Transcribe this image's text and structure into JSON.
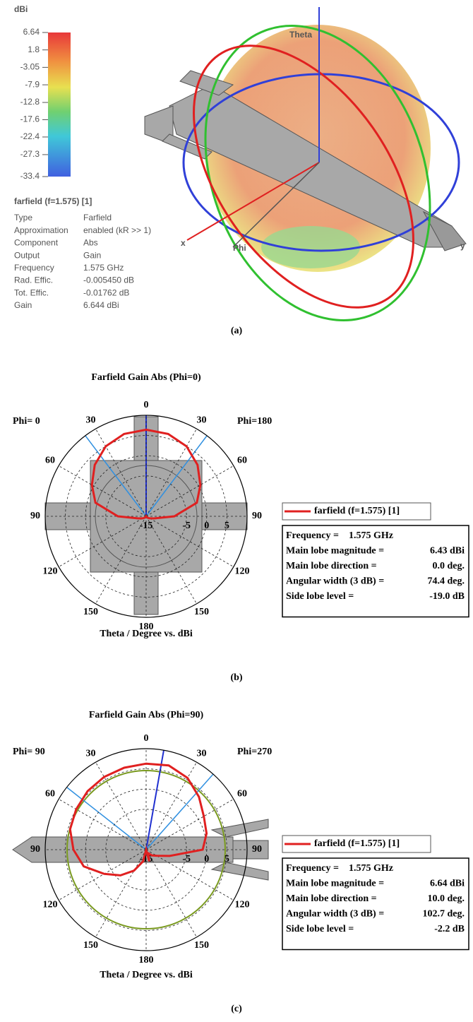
{
  "chart_data": [
    {
      "type": "colorbar",
      "unit": "dBi",
      "ylim": [
        -33.4,
        6.64
      ],
      "yticks": [
        6.64,
        1.8,
        -3.05,
        -7.9,
        -12.8,
        -17.6,
        -22.4,
        -27.3,
        -33.4
      ],
      "title": "farfield (f=1.575) [1]",
      "properties": [
        {
          "label": "Type",
          "value": "Farfield"
        },
        {
          "label": "Approximation",
          "value": "enabled (kR >> 1)"
        },
        {
          "label": "Component",
          "value": "Abs"
        },
        {
          "label": "Output",
          "value": "Gain"
        },
        {
          "label": "Frequency",
          "value": "1.575 GHz"
        },
        {
          "label": "Rad. Effic.",
          "value": "-0.005450 dB"
        },
        {
          "label": "Tot. Effic.",
          "value": "-0.01762 dB"
        },
        {
          "label": "Gain",
          "value": "6.644 dBi"
        }
      ],
      "axis_labels": [
        "Theta",
        "Phi",
        "x",
        "y"
      ],
      "caption": "(a)"
    },
    {
      "type": "polar",
      "title": "Farfield Gain Abs (Phi=0)",
      "xlabel": "Theta / Degree vs. dBi",
      "left_label": "Phi= 0",
      "right_label": "Phi=180",
      "angle_ticks_right": [
        0,
        30,
        60,
        90,
        120,
        150,
        180
      ],
      "angle_ticks_left": [
        30,
        60,
        90,
        120,
        150
      ],
      "rlim": [
        -15,
        10
      ],
      "rticks": [
        -15,
        -5,
        0,
        5
      ],
      "theta": [
        0,
        15,
        30,
        45,
        60,
        75,
        90,
        105,
        120,
        135,
        150,
        165,
        180,
        195,
        210,
        225,
        240,
        255,
        270,
        285,
        300,
        315,
        330,
        345
      ],
      "series": [
        {
          "name": "farfield (f=1.575) [1]",
          "color": "#e02020",
          "values": [
            6.43,
            6.1,
            5,
            3,
            0.5,
            -2,
            -8,
            -13,
            -14,
            -14.5,
            -14.8,
            -15,
            -15,
            -15,
            -14.8,
            -14.5,
            -14,
            -13,
            -8,
            -2,
            0.5,
            3,
            5,
            6.1
          ]
        }
      ],
      "info": [
        {
          "label": "Frequency =",
          "value": "1.575 GHz"
        },
        {
          "label": "Main lobe magnitude =",
          "value": "6.43 dBi"
        },
        {
          "label": "Main lobe direction =",
          "value": "0.0 deg."
        },
        {
          "label": "Angular width (3 dB) =",
          "value": "74.4 deg."
        },
        {
          "label": "Side lobe level =",
          "value": "-19.0 dB"
        }
      ],
      "caption": "(b)"
    },
    {
      "type": "polar",
      "title": "Farfield Gain Abs (Phi=90)",
      "xlabel": "Theta / Degree vs. dBi",
      "left_label": "Phi= 90",
      "right_label": "Phi=270",
      "angle_ticks_right": [
        0,
        30,
        60,
        90,
        120,
        150,
        180
      ],
      "angle_ticks_left": [
        30,
        60,
        90,
        120,
        150
      ],
      "rlim": [
        -15,
        10
      ],
      "rticks": [
        -15,
        -5,
        0,
        5
      ],
      "theta": [
        0,
        15,
        30,
        45,
        60,
        75,
        90,
        105,
        120,
        135,
        150,
        165,
        180,
        195,
        210,
        225,
        240,
        255,
        270,
        285,
        300,
        315,
        330,
        345
      ],
      "series": [
        {
          "name": "farfield (f=1.575) [1]",
          "color": "#e02020",
          "values": [
            6.3,
            6.6,
            5.5,
            3.5,
            1.5,
            0.5,
            -1,
            -9,
            -12,
            -13,
            -14,
            -12,
            -15,
            -12,
            -9,
            -6,
            -3,
            1,
            3,
            4.5,
            5,
            5.5,
            5.8,
            6
          ]
        }
      ],
      "info": [
        {
          "label": "Frequency =",
          "value": "1.575 GHz"
        },
        {
          "label": "Main lobe magnitude =",
          "value": "6.64 dBi"
        },
        {
          "label": "Main lobe direction =",
          "value": "10.0 deg."
        },
        {
          "label": "Angular width (3 dB) =",
          "value": "102.7 deg."
        },
        {
          "label": "Side lobe level =",
          "value": "-2.2 dB"
        }
      ],
      "caption": "(c)"
    }
  ]
}
